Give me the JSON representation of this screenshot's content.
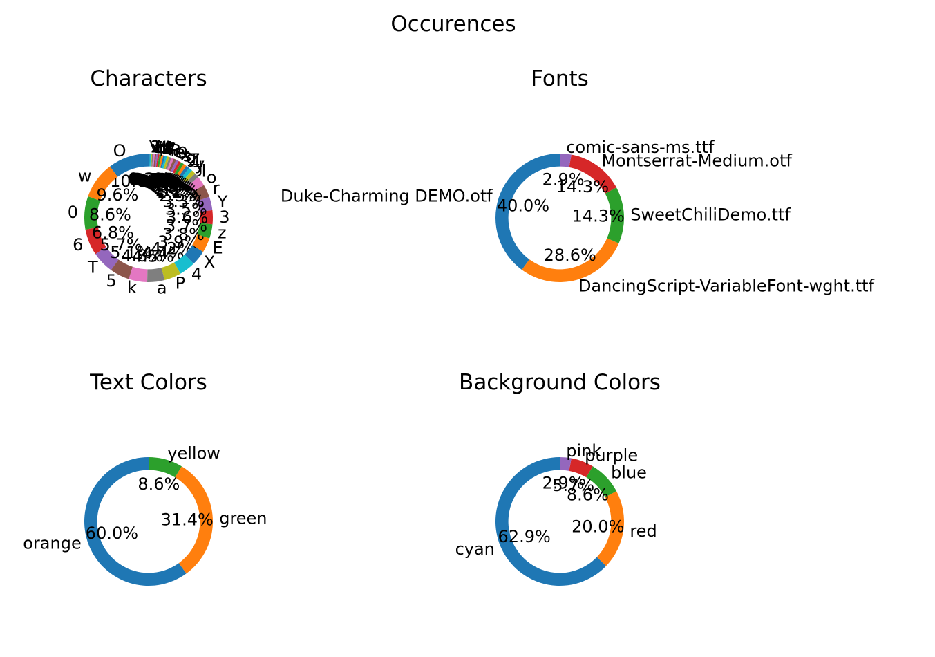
{
  "title": "Occurences",
  "chart_data": [
    {
      "type": "pie",
      "donut": true,
      "title": "Characters",
      "categories": [
        "O",
        "w",
        "0",
        "6",
        "T",
        "5",
        "k",
        "a",
        "P",
        "4",
        "X",
        "E",
        "z",
        "3",
        "Y",
        "r",
        "o",
        "l",
        "J",
        "y",
        "1",
        "Z",
        "g",
        "s",
        "x",
        "9",
        "e",
        "c",
        "R",
        "f",
        "7",
        "8",
        "b",
        "d",
        "M",
        "h",
        "U",
        "q",
        "v",
        "2",
        "V"
      ],
      "values": [
        10.6,
        9.6,
        8.6,
        6.8,
        5.7,
        5.1,
        4.8,
        4.5,
        4.4,
        4.2,
        3.9,
        3.8,
        3.7,
        3.6,
        3.5,
        3.3,
        2.5,
        1.2,
        1.1,
        1.0,
        0.9,
        0.8,
        0.8,
        0.7,
        0.7,
        0.7,
        0.6,
        0.6,
        0.6,
        0.5,
        0.5,
        0.5,
        0.5,
        0.4,
        0.4,
        0.4,
        0.4,
        0.3,
        0.3,
        0.3,
        0.3
      ],
      "value_labels": [
        "10.6%",
        "9.6%",
        "8.6%",
        "6.8%",
        "5.7%",
        "5.1%",
        "4.8%",
        "4.5%",
        "4.4%",
        "4.2%",
        "3.9%",
        "3.8%",
        "3.7%",
        "3.6%",
        "3.5%",
        "3.3%",
        "2.5%",
        "1.2%",
        "1.1%",
        "1.0%",
        "0.9%",
        "0.8%",
        "0.8%",
        "0.7%",
        "0.7%",
        "0.7%",
        "0.6%",
        "0.6%",
        "0.6%",
        "0.5%",
        "0.5%",
        "0.5%",
        "0.5%",
        "0.4%",
        "0.4%",
        "0.4%",
        "0.4%",
        "0.3%",
        "0.3%",
        "0.3%",
        "0.3%"
      ]
    },
    {
      "type": "pie",
      "donut": true,
      "title": "Fonts",
      "categories": [
        "Duke-Charming DEMO.otf",
        "DancingScript-VariableFont-wght.ttf",
        "SweetChiliDemo.ttf",
        "Montserrat-Medium.otf",
        "comic-sans-ms.ttf"
      ],
      "values": [
        40.0,
        28.6,
        14.3,
        14.3,
        2.9
      ],
      "value_labels": [
        "40.0%",
        "28.6%",
        "14.3%",
        "14.3%",
        "2.9%"
      ]
    },
    {
      "type": "pie",
      "donut": true,
      "title": "Text Colors",
      "categories": [
        "orange",
        "green",
        "yellow"
      ],
      "values": [
        60.0,
        31.4,
        8.6
      ],
      "value_labels": [
        "60.0%",
        "31.4%",
        "8.6%"
      ]
    },
    {
      "type": "pie",
      "donut": true,
      "title": "Background Colors",
      "categories": [
        "cyan",
        "red",
        "blue",
        "purple",
        "pink"
      ],
      "values": [
        62.9,
        20.0,
        8.6,
        5.7,
        2.9
      ],
      "value_labels": [
        "62.9%",
        "20.0%",
        "8.6%",
        "5.7%",
        "2.9%"
      ]
    }
  ],
  "palette": [
    "#1f77b4",
    "#ff7f0e",
    "#2ca02c",
    "#d62728",
    "#9467bd",
    "#8c564b",
    "#e377c2",
    "#7f7f7f",
    "#bcbd22",
    "#17becf"
  ]
}
